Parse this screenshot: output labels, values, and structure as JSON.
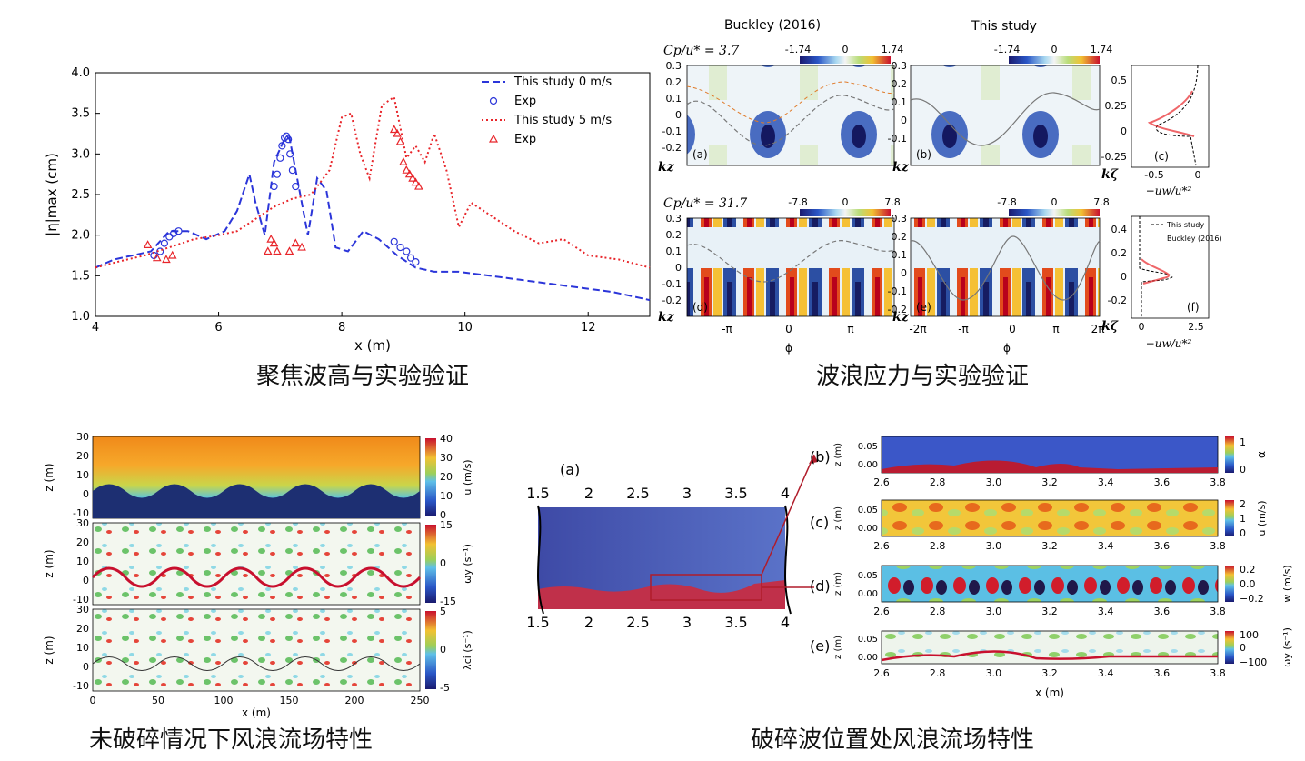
{
  "captions": {
    "top_left": "聚焦波高与实验验证",
    "top_right": "波浪应力与实验验证",
    "bottom_left": "未破碎情况下风浪流场特性",
    "bottom_right": "破碎波位置处风浪流场特性"
  },
  "chart_data": [
    {
      "type": "line",
      "xlabel": "x (m)",
      "ylabel": "|η|max (cm)",
      "xlim": [
        4,
        13
      ],
      "ylim": [
        1.0,
        4.0
      ],
      "xticks": [
        "4",
        "6",
        "8",
        "10",
        "12"
      ],
      "yticks": [
        "1.0",
        "1.5",
        "2.0",
        "2.5",
        "3.0",
        "3.5",
        "4.0"
      ],
      "legend_position": "top-right",
      "series": [
        {
          "name": "This study 0 m/s",
          "color": "#2b35d9",
          "style": "dashed",
          "x": [
            4.0,
            4.3,
            4.6,
            4.9,
            5.2,
            5.5,
            5.8,
            6.1,
            6.3,
            6.5,
            6.6,
            6.75,
            6.9,
            7.05,
            7.15,
            7.3,
            7.45,
            7.6,
            7.75,
            7.9,
            8.1,
            8.35,
            8.6,
            8.9,
            9.2,
            9.5,
            9.9,
            10.4,
            10.9,
            11.4,
            11.9,
            12.4,
            13.0
          ],
          "y": [
            1.6,
            1.7,
            1.75,
            1.8,
            2.05,
            2.05,
            1.95,
            2.05,
            2.3,
            2.75,
            2.4,
            2.0,
            2.9,
            3.15,
            3.2,
            2.6,
            2.0,
            2.7,
            2.55,
            1.85,
            1.8,
            2.05,
            1.95,
            1.75,
            1.6,
            1.55,
            1.55,
            1.5,
            1.45,
            1.4,
            1.35,
            1.3,
            1.2
          ]
        },
        {
          "name": "Exp",
          "color": "#2b35d9",
          "marker": "circle",
          "x": [
            4.95,
            5.05,
            5.12,
            5.2,
            5.27,
            5.35,
            6.9,
            6.95,
            7.0,
            7.03,
            7.07,
            7.1,
            7.13,
            7.16,
            7.2,
            7.25,
            8.85,
            8.95,
            9.05,
            9.12,
            9.2
          ],
          "y": [
            1.75,
            1.8,
            1.9,
            1.98,
            2.02,
            2.05,
            2.6,
            2.75,
            2.95,
            3.1,
            3.2,
            3.22,
            3.18,
            3.0,
            2.8,
            2.6,
            1.92,
            1.85,
            1.8,
            1.72,
            1.67
          ]
        },
        {
          "name": "This study 5 m/s",
          "color": "#e8252a",
          "style": "dotted",
          "x": [
            4.0,
            4.4,
            4.8,
            5.2,
            5.6,
            6.0,
            6.3,
            6.6,
            6.9,
            7.2,
            7.5,
            7.8,
            8.0,
            8.15,
            8.3,
            8.45,
            8.65,
            8.85,
            9.05,
            9.2,
            9.35,
            9.5,
            9.7,
            9.9,
            10.1,
            10.4,
            10.8,
            11.2,
            11.6,
            12.0,
            12.5,
            13.0
          ],
          "y": [
            1.6,
            1.68,
            1.75,
            1.85,
            1.95,
            2.0,
            2.05,
            2.2,
            2.35,
            2.45,
            2.5,
            2.8,
            3.45,
            3.5,
            3.0,
            2.7,
            3.6,
            3.7,
            2.95,
            3.1,
            2.9,
            3.25,
            2.8,
            2.1,
            2.4,
            2.25,
            2.05,
            1.9,
            1.95,
            1.75,
            1.7,
            1.6
          ]
        },
        {
          "name": "Exp",
          "color": "#e8252a",
          "marker": "triangle",
          "x": [
            4.85,
            5.0,
            5.15,
            5.25,
            6.8,
            6.85,
            6.9,
            6.95,
            7.15,
            7.25,
            7.35,
            8.85,
            8.9,
            8.95,
            9.0,
            9.05,
            9.1,
            9.15,
            9.2,
            9.25
          ],
          "y": [
            1.88,
            1.72,
            1.7,
            1.75,
            1.8,
            1.95,
            1.9,
            1.8,
            1.8,
            1.9,
            1.85,
            3.3,
            3.25,
            3.15,
            2.9,
            2.8,
            2.75,
            2.7,
            2.65,
            2.6
          ]
        }
      ]
    }
  ],
  "stress_figure": {
    "headings": {
      "left": "Buckley (2016)",
      "right": "This study"
    },
    "row1": {
      "param": "Cp/u* = 3.7",
      "cbar_ticks": [
        "-1.74",
        "0",
        "1.74"
      ],
      "yticks": [
        "0.3",
        "0.2",
        "0.1",
        "0",
        "-0.1",
        "-0.2"
      ],
      "ylabel": "kz",
      "labels": [
        "(a)",
        "(b)",
        "(c)"
      ],
      "profile_xticks": [
        "-0.5",
        "0"
      ],
      "profile_yticks": [
        "0.5",
        "0.25",
        "0",
        "-0.25"
      ],
      "profile_ylabel": "kζ"
    },
    "row2": {
      "param": "Cp/u* = 31.7",
      "cbar_ticks": [
        "-7.8",
        "0",
        "7.8"
      ],
      "yticks": [
        "0.3",
        "0.2",
        "0.1",
        "0",
        "-0.1",
        "-0.2"
      ],
      "ylabel": "kz",
      "labels": [
        "(d)",
        "(e)",
        "(f)"
      ],
      "phase_ticks_left": [
        "-π",
        "0",
        "π"
      ],
      "phase_ticks_right": [
        "-2π",
        "-π",
        "0",
        "π",
        "2π"
      ],
      "phase_label": "ϕ",
      "profile_xticks": [
        "0",
        "2.5"
      ],
      "profile_yticks": [
        "0.4",
        "0.2",
        "0",
        "-0.2"
      ],
      "profile_ylabel": "kζ",
      "legend": [
        "This study",
        "Buckley (2016)"
      ]
    },
    "profile_xlabel": "−uw/u*²"
  },
  "flow_fields": {
    "xticks": [
      "0",
      "50",
      "100",
      "150",
      "200",
      "250"
    ],
    "xlabel": "x (m)",
    "zlabel": "z (m)",
    "zticks": [
      "30",
      "20",
      "10",
      "0",
      "-10"
    ],
    "panels": [
      {
        "cbar_label": "u (m/s)",
        "cbar_ticks": [
          "40",
          "30",
          "20",
          "10",
          "0"
        ]
      },
      {
        "cbar_label": "ωy (s⁻¹)",
        "cbar_ticks": [
          "15",
          "0",
          "-15"
        ]
      },
      {
        "cbar_label": "λci (s⁻¹)",
        "cbar_ticks": [
          "5",
          "0",
          "-5"
        ]
      }
    ]
  },
  "breaking": {
    "overview_label": "(a)",
    "overview_ticks": [
      "1.5",
      "2",
      "2.5",
      "3",
      "3.5",
      "4"
    ],
    "xticks": [
      "2.6",
      "2.8",
      "3.0",
      "3.2",
      "3.4",
      "3.6",
      "3.8"
    ],
    "xlabel": "x (m)",
    "zlabel": "z (m)",
    "zticks": [
      "0.05",
      "0.00"
    ],
    "panels": [
      {
        "label": "(b)",
        "cbar_label": "α",
        "cbar_ticks": [
          "1",
          "0"
        ]
      },
      {
        "label": "(c)",
        "cbar_label": "u (m/s)",
        "cbar_ticks": [
          "2",
          "1",
          "0"
        ]
      },
      {
        "label": "(d)",
        "cbar_label": "w (m/s)",
        "cbar_ticks": [
          "0.2",
          "0.0",
          "−0.2"
        ]
      },
      {
        "label": "(e)",
        "cbar_label": "ωy (s⁻¹)",
        "cbar_ticks": [
          "100",
          "0",
          "−100"
        ]
      }
    ]
  }
}
